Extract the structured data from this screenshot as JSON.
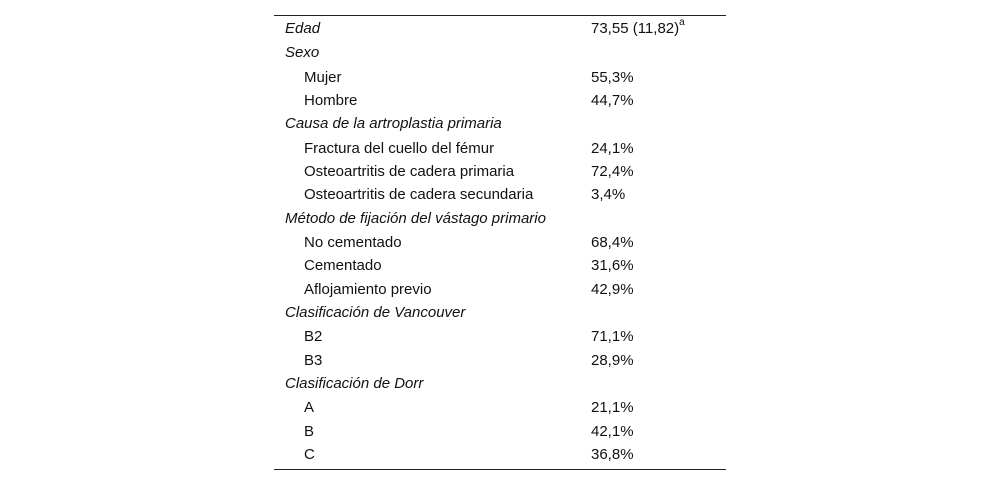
{
  "table": {
    "rows": [
      {
        "label": "Edad",
        "value": "73,55 (11,82)",
        "sup": "a"
      },
      {
        "label": "Sexo"
      },
      {
        "label": "Mujer",
        "value": "55,3%"
      },
      {
        "label": "Hombre",
        "value": "44,7%"
      },
      {
        "label": "Causa de la artroplastia primaria"
      },
      {
        "label": "Fractura del cuello del fémur",
        "value": "24,1%"
      },
      {
        "label": "Osteoartritis de cadera primaria",
        "value": "72,4%"
      },
      {
        "label": "Osteoartritis de cadera secundaria",
        "value": "3,4%"
      },
      {
        "label": "Método de fijación del vástago primario"
      },
      {
        "label": "No cementado",
        "value": "68,4%"
      },
      {
        "label": "Cementado",
        "value": "31,6%"
      },
      {
        "label": "Aflojamiento previo",
        "value": "42,9%"
      },
      {
        "label": "Clasificación de Vancouver"
      },
      {
        "label": "B2",
        "value": "71,1%"
      },
      {
        "label": "B3",
        "value": "28,9%"
      },
      {
        "label": "Clasificación de Dorr"
      },
      {
        "label": "A",
        "value": "21,1%"
      },
      {
        "label": "B",
        "value": "42,1%"
      },
      {
        "label": "C",
        "value": "36,8%"
      }
    ]
  }
}
